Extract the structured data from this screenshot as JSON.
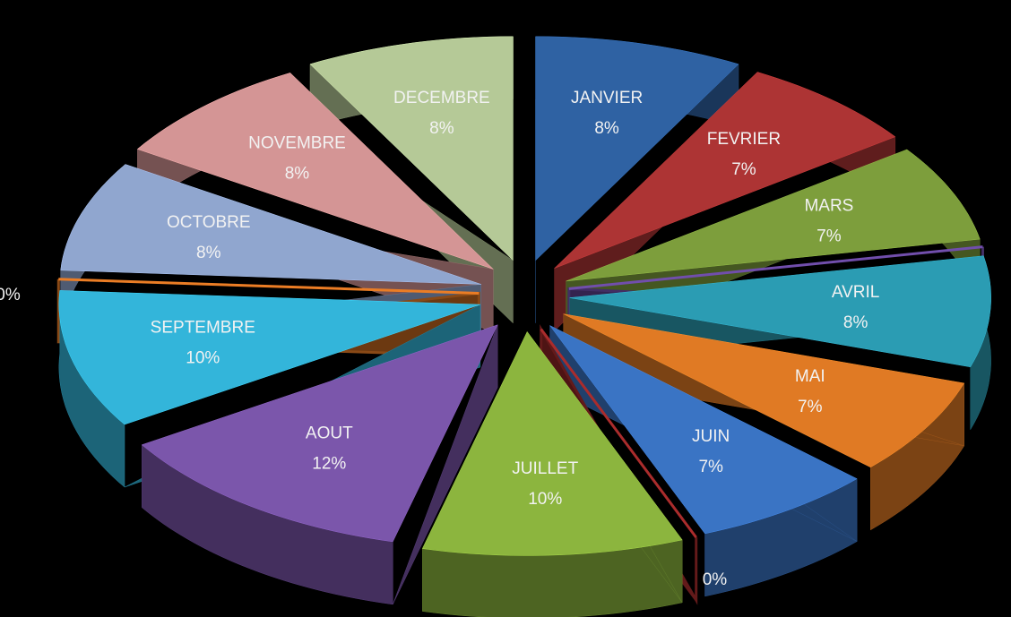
{
  "chart_data": {
    "type": "pie",
    "categories": [
      "JANVIER",
      "FEVRIER",
      "MARS",
      null,
      "AVRIL",
      "MAI",
      "JUIN",
      null,
      "JUILLET",
      "AOUT",
      "SEPTEMBRE",
      null,
      "OCTOBRE",
      "NOVEMBRE",
      "DECEMBRE"
    ],
    "values": [
      8,
      7,
      7,
      0,
      8,
      7,
      7,
      0,
      10,
      12,
      10,
      0,
      8,
      8,
      8
    ],
    "value_labels": [
      "8%",
      "7%",
      "7%",
      "0%",
      "8%",
      "7%",
      "7%",
      "0%",
      "10%",
      "12%",
      "10%",
      "0%",
      "8%",
      "8%",
      "8%"
    ],
    "colors": [
      "#2f62a3",
      "#ad3434",
      "#7d9e3c",
      "#5e418f",
      "#2b9cb3",
      "#e07a24",
      "#3a74c4",
      "#8e2525",
      "#8cb53e",
      "#7b56ab",
      "#33b5da",
      "#c4681f",
      "#90a6cf",
      "#d49595",
      "#b5c997"
    ]
  }
}
